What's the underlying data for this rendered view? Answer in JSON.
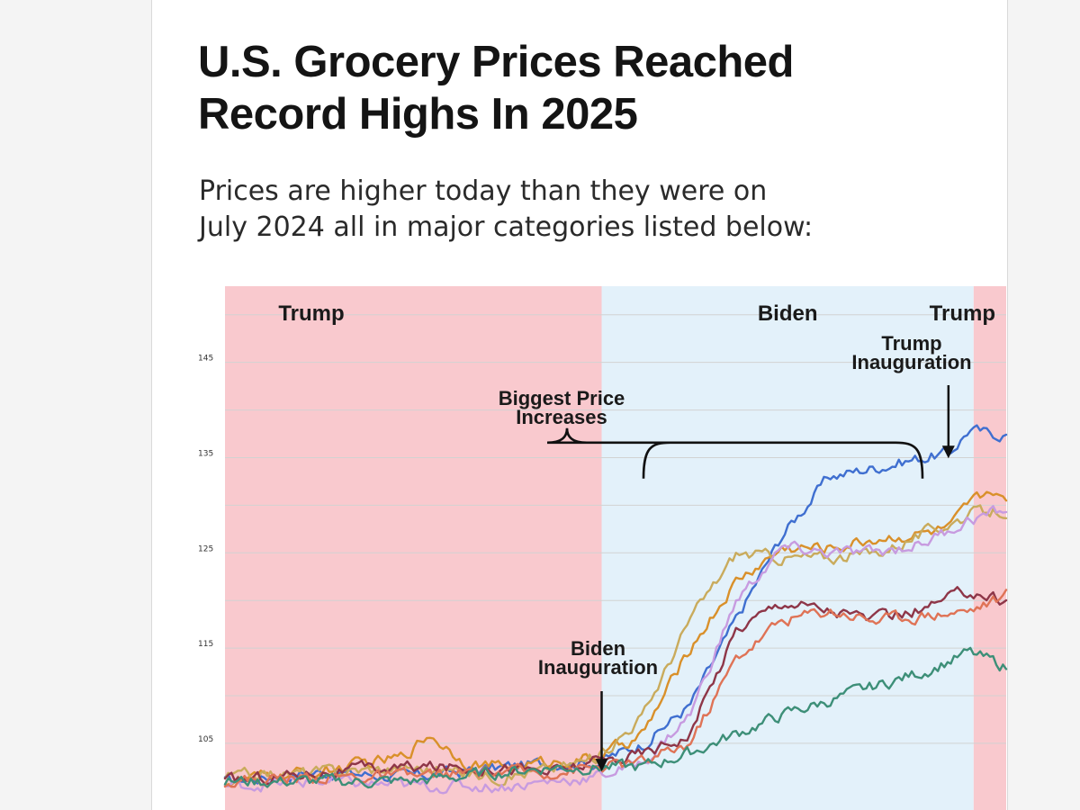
{
  "header": {
    "title_line1": "U.S. Grocery Prices Reached",
    "title_line2": "Record Highs In 2025",
    "subtitle_line1": "Prices are higher today than they were on",
    "subtitle_line2": "July 2024 all in major categories listed below:"
  },
  "colors": {
    "trump_band": "#f9c9ce",
    "biden_band": "#e3f1fa",
    "grid": "#d2d2d2"
  },
  "chart_data": {
    "type": "line",
    "title": "U.S. Grocery Prices Reached Record Highs In 2025",
    "subtitle": "Prices are higher today than they were on July 2024 all in major categories listed below:",
    "xlabel": "",
    "ylabel": "",
    "ylim": [
      98,
      153
    ],
    "xlim": [
      2017.0,
      2025.4
    ],
    "grid": true,
    "y_ticks": [
      {
        "value": 145,
        "label": "145"
      },
      {
        "value": 135,
        "label": "135"
      },
      {
        "value": 125,
        "label": "125"
      },
      {
        "value": 115,
        "label": "115"
      },
      {
        "value": 105,
        "label": "105"
      }
    ],
    "eras": [
      {
        "label": "Trump",
        "start": 2017.0,
        "end": 2021.05,
        "party": "trump"
      },
      {
        "label": "Biden",
        "start": 2021.05,
        "end": 2025.05,
        "party": "biden"
      },
      {
        "label": "Trump",
        "start": 2025.05,
        "end": 2025.4,
        "party": "trump"
      }
    ],
    "annotations": [
      {
        "lines": [
          "Biden",
          "Inauguration"
        ],
        "x": 2021.05,
        "y": 103,
        "kind": "arrow-down"
      },
      {
        "lines": [
          "Trump",
          "Inauguration"
        ],
        "x": 2025.05,
        "y": 137,
        "kind": "arrow-down"
      },
      {
        "lines": [
          "Biggest Price",
          "Increases"
        ],
        "x_start": 2021.5,
        "x_end": 2024.5,
        "y": 134.5,
        "kind": "brace"
      }
    ],
    "series": [
      {
        "name": "Blue series",
        "color": "#3f6fd0",
        "x": [
          2017.0,
          2018.0,
          2019.0,
          2020.0,
          2020.5,
          2021.0,
          2021.5,
          2022.0,
          2022.5,
          2023.0,
          2023.5,
          2024.0,
          2024.5,
          2024.8,
          2025.0,
          2025.2,
          2025.4
        ],
        "y": [
          101,
          102,
          101.5,
          102.5,
          103,
          103,
          105,
          109,
          118,
          127,
          133,
          134,
          135,
          135.5,
          138,
          137.5,
          137.5
        ]
      },
      {
        "name": "Orange series",
        "color": "#d9902a",
        "x": [
          2017.0,
          2018.0,
          2018.9,
          2019.2,
          2019.6,
          2020.0,
          2020.5,
          2021.0,
          2021.5,
          2022.0,
          2022.5,
          2023.0,
          2023.5,
          2024.0,
          2024.5,
          2024.8,
          2025.0,
          2025.3,
          2025.4
        ],
        "y": [
          101,
          102,
          103.5,
          106,
          103,
          102.5,
          103,
          103.5,
          106,
          115,
          122,
          125.5,
          125.5,
          126.5,
          127,
          127.5,
          130,
          132,
          130
        ]
      },
      {
        "name": "Tan series",
        "color": "#c9ab5c",
        "x": [
          2017.0,
          2018.0,
          2019.0,
          2020.0,
          2020.6,
          2021.0,
          2021.5,
          2022.0,
          2022.5,
          2023.0,
          2023.5,
          2024.0,
          2024.5,
          2025.0,
          2025.4
        ],
        "y": [
          101.5,
          102,
          102.5,
          101.5,
          102.5,
          103.5,
          108,
          118,
          125,
          124.5,
          124.5,
          125,
          127,
          129,
          129.5
        ]
      },
      {
        "name": "Lavender series",
        "color": "#c79be0",
        "x": [
          2017.0,
          2018.0,
          2019.0,
          2020.0,
          2020.5,
          2021.0,
          2021.5,
          2022.0,
          2022.5,
          2023.0,
          2023.5,
          2024.0,
          2024.5,
          2025.0,
          2025.4
        ],
        "y": [
          100.5,
          101,
          100.5,
          100.5,
          101,
          101.5,
          103,
          108,
          120,
          125.5,
          125,
          125,
          126,
          128.5,
          129.5
        ]
      },
      {
        "name": "Maroon series",
        "color": "#8e3648",
        "x": [
          2017.0,
          2018.0,
          2019.0,
          2020.0,
          2020.5,
          2021.0,
          2021.5,
          2022.0,
          2022.5,
          2023.0,
          2023.5,
          2024.0,
          2024.5,
          2025.0,
          2025.4
        ],
        "y": [
          101,
          102,
          102.5,
          102.5,
          102,
          103,
          104,
          106,
          117,
          120,
          119,
          118,
          119,
          121,
          120
        ]
      },
      {
        "name": "Salmon series",
        "color": "#df7356",
        "x": [
          2017.0,
          2018.0,
          2019.0,
          2020.0,
          2020.5,
          2021.0,
          2021.5,
          2022.0,
          2022.5,
          2023.0,
          2023.5,
          2024.0,
          2024.5,
          2025.0,
          2025.4
        ],
        "y": [
          101,
          101.5,
          101.5,
          102,
          102,
          102.5,
          103,
          105,
          114,
          118,
          119,
          118,
          118.5,
          119,
          120.5
        ]
      },
      {
        "name": "Green series",
        "color": "#3d8f78",
        "x": [
          2017.0,
          2018.0,
          2019.0,
          2020.0,
          2020.5,
          2021.0,
          2021.5,
          2022.0,
          2022.5,
          2023.0,
          2023.5,
          2024.0,
          2024.5,
          2025.0,
          2025.4
        ],
        "y": [
          101,
          101,
          101,
          102,
          102.5,
          102.5,
          102.5,
          104,
          106,
          108,
          109.5,
          111,
          112.5,
          114.5,
          113
        ]
      }
    ]
  }
}
